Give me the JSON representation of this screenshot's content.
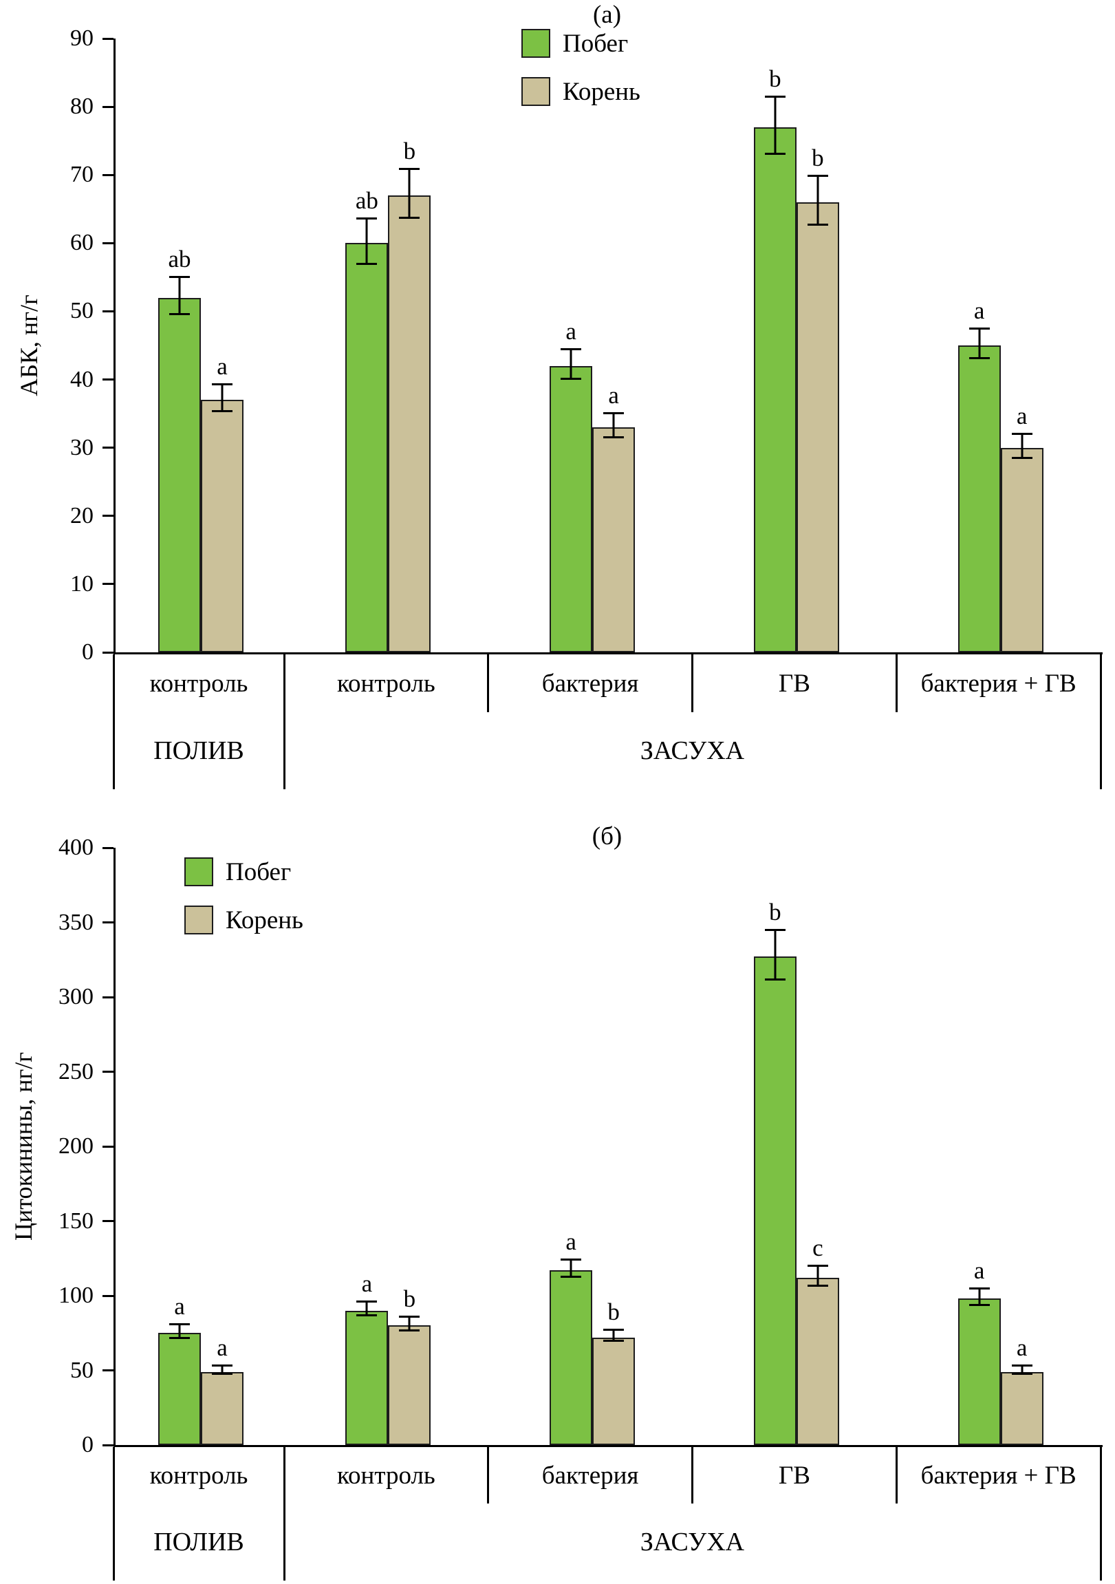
{
  "figure": {
    "panel_a_label": "(а)",
    "panel_b_label": "(б)"
  },
  "colors": {
    "shoot": "#7cc144",
    "root": "#cbc19a",
    "axis": "#000000",
    "bar_border": "#1c1c1c"
  },
  "chart_data": [
    {
      "type": "bar",
      "panel": "(а)",
      "ylabel": "АБК, нг/г",
      "ylim": [
        0,
        90
      ],
      "ytick_step": 10,
      "grid": false,
      "legend_position": "top-center",
      "legend": [
        "Побег",
        "Корень"
      ],
      "categories": [
        "контроль",
        "контроль",
        "бактерия",
        "ГВ",
        "бактерия + ГВ"
      ],
      "condition_groups": [
        {
          "label": "ПОЛИВ",
          "span": 1
        },
        {
          "label": "ЗАСУХА",
          "span": 4
        }
      ],
      "series": [
        {
          "name": "Побег",
          "color": "#7cc144",
          "values": [
            52,
            60,
            42,
            77,
            45
          ],
          "errors": [
            2.6,
            3.2,
            2.0,
            4.0,
            2.0
          ],
          "sig_letters": [
            "ab",
            "ab",
            "a",
            "b",
            "a"
          ]
        },
        {
          "name": "Корень",
          "color": "#cbc19a",
          "values": [
            37,
            67,
            33,
            66,
            30
          ],
          "errors": [
            1.8,
            3.4,
            1.6,
            3.4,
            1.6
          ],
          "sig_letters": [
            "a",
            "b",
            "a",
            "b",
            "a"
          ]
        }
      ]
    },
    {
      "type": "bar",
      "panel": "(б)",
      "ylabel": "Цитокинины, нг/г",
      "ylim": [
        0,
        400
      ],
      "ytick_step": 50,
      "grid": false,
      "legend_position": "top-left",
      "legend": [
        "Побег",
        "Корень"
      ],
      "categories": [
        "контроль",
        "контроль",
        "бактерия",
        "ГВ",
        "бактерия + ГВ"
      ],
      "condition_groups": [
        {
          "label": "ПОЛИВ",
          "span": 1
        },
        {
          "label": "ЗАСУХА",
          "span": 4
        }
      ],
      "series": [
        {
          "name": "Побег",
          "color": "#7cc144",
          "values": [
            75,
            90,
            117,
            327,
            98
          ],
          "errors": [
            4,
            4,
            5,
            16,
            5
          ],
          "sig_letters": [
            "a",
            "a",
            "a",
            "b",
            "a"
          ]
        },
        {
          "name": "Корень",
          "color": "#cbc19a",
          "values": [
            49,
            80,
            72,
            112,
            49
          ],
          "errors": [
            2,
            4,
            3,
            6,
            2
          ],
          "sig_letters": [
            "a",
            "b",
            "b",
            "c",
            "a"
          ]
        }
      ]
    }
  ]
}
